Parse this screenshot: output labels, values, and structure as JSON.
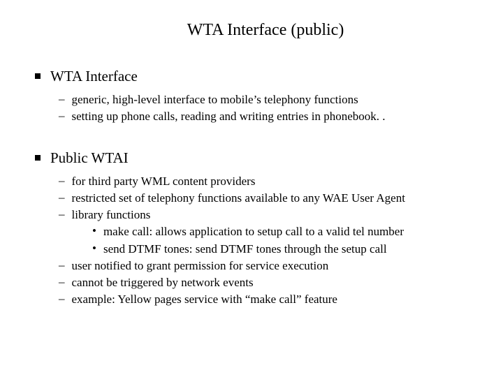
{
  "title": "WTA Interface (public)",
  "sections": [
    {
      "heading": "WTA Interface",
      "items": [
        {
          "type": "dash",
          "text": "generic, high-level interface to mobile’s telephony functions"
        },
        {
          "type": "dash",
          "text": "setting up phone calls, reading and writing entries in phonebook. ."
        }
      ]
    },
    {
      "heading": "Public WTAI",
      "items": [
        {
          "type": "dash",
          "text": "for third party WML content providers"
        },
        {
          "type": "dash",
          "text": "restricted set of telephony functions available to any WAE User Agent"
        },
        {
          "type": "dash",
          "text": "library functions"
        },
        {
          "type": "dot",
          "text": "make call: allows application to setup call to a valid tel number"
        },
        {
          "type": "dot",
          "text": "send DTMF tones: send DTMF tones through the setup call"
        },
        {
          "type": "dash",
          "text": "user notified to grant permission for service execution"
        },
        {
          "type": "dash",
          "text": "cannot be triggered by network events"
        },
        {
          "type": "dash",
          "text": "example: Yellow pages service with “make call” feature"
        }
      ]
    }
  ],
  "colors": {
    "background": "#ffffff",
    "text": "#000000",
    "bullet": "#000000"
  },
  "fonts": {
    "family": "Times New Roman",
    "title_size": 24,
    "heading_size": 21,
    "body_size": 17
  }
}
